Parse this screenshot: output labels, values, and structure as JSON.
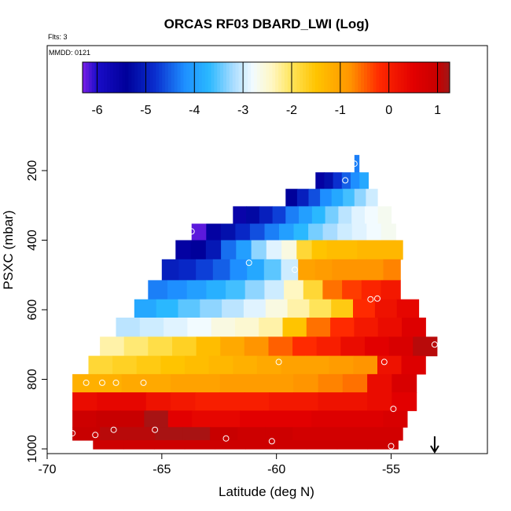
{
  "chart_data": {
    "type": "heatmap",
    "title": "ORCAS RF03 DBARD_LWI (Log)",
    "subtitle": "Flts: 3",
    "annotation": "MMDD: 0121",
    "xlabel": "Latitude (deg N)",
    "ylabel": "PSXC (mbar)",
    "xlim": [
      -70,
      -50.8
    ],
    "ylim": [
      1000,
      100
    ],
    "y_inverted": true,
    "xticks": [
      -70,
      -65,
      -60,
      -55
    ],
    "yticks": [
      200,
      400,
      600,
      800,
      1000
    ],
    "colorbar": {
      "range": [
        -6.3,
        1.25
      ],
      "ticks": [
        -6,
        -5,
        -4,
        -3,
        -2,
        -1,
        0,
        1
      ],
      "stops": [
        {
          "v": -6.3,
          "color": "#7b1fe6"
        },
        {
          "v": -6.0,
          "color": "#1a0cc8"
        },
        {
          "v": -5.4,
          "color": "#00009a"
        },
        {
          "v": -4.8,
          "color": "#0a2fcf"
        },
        {
          "v": -4.2,
          "color": "#1e8fff"
        },
        {
          "v": -3.7,
          "color": "#2ab8ff"
        },
        {
          "v": -3.2,
          "color": "#a8dcff"
        },
        {
          "v": -2.8,
          "color": "#f2fbff"
        },
        {
          "v": -2.4,
          "color": "#fff7c2"
        },
        {
          "v": -2.0,
          "color": "#ffe45a"
        },
        {
          "v": -1.5,
          "color": "#ffc400"
        },
        {
          "v": -0.8,
          "color": "#ff9500"
        },
        {
          "v": -0.2,
          "color": "#ff2a00"
        },
        {
          "v": 0.5,
          "color": "#e20000"
        },
        {
          "v": 1.0,
          "color": "#c80000"
        },
        {
          "v": 1.25,
          "color": "#a01818"
        }
      ]
    },
    "rows": [
      {
        "p": 180,
        "lat_min": -56.6,
        "lat_max": -56.4,
        "values": [
          -4.3
        ]
      },
      {
        "p": 230,
        "lat_min": -58.3,
        "lat_max": -56.0,
        "values": [
          -5.5,
          -5.2,
          -4.8,
          -4.5,
          -4.2,
          -3.9
        ]
      },
      {
        "p": 275,
        "lat_min": -59.6,
        "lat_max": -55.6,
        "values": [
          -5.4,
          -5.0,
          -4.6,
          -4.2,
          -3.9,
          -3.6,
          -3.3,
          -3.0
        ]
      },
      {
        "p": 330,
        "lat_min": -61.9,
        "lat_max": -55.0,
        "values": [
          -5.6,
          -5.3,
          -5.0,
          -4.7,
          -4.3,
          -4.0,
          -3.7,
          -3.4,
          -3.1,
          -2.9,
          -2.8,
          -2.7
        ]
      },
      {
        "p": 375,
        "lat_min": -63.7,
        "lat_max": -54.8,
        "values": [
          -6.2,
          -5.5,
          -5.2,
          -4.9,
          -4.6,
          -4.3,
          -4.0,
          -3.7,
          -3.4,
          -3.2,
          -3.0,
          -2.9,
          -2.8,
          -2.7
        ]
      },
      {
        "p": 425,
        "lat_min": -64.4,
        "lat_max": -54.5,
        "values": [
          -5.5,
          -5.4,
          -5.1,
          -4.4,
          -4.0,
          -3.3,
          -2.9,
          -2.6,
          -1.8,
          -1.5,
          -1.4,
          -1.4,
          -1.3,
          -1.3,
          -1.3
        ]
      },
      {
        "p": 485,
        "lat_min": -65.0,
        "lat_max": -54.6,
        "values": [
          -5.0,
          -4.9,
          -4.7,
          -4.5,
          -4.2,
          -3.9,
          -3.5,
          -3.0,
          -1.0,
          -0.9,
          -0.8,
          -0.8,
          -0.8,
          -0.7
        ]
      },
      {
        "p": 545,
        "lat_min": -65.6,
        "lat_max": -54.6,
        "values": [
          -4.3,
          -4.2,
          -4.0,
          -3.8,
          -3.6,
          -3.3,
          -3.0,
          -2.4,
          -1.8,
          -0.6,
          -0.3,
          -0.1,
          0.1
        ]
      },
      {
        "p": 595,
        "lat_min": -66.2,
        "lat_max": -53.8,
        "values": [
          -3.9,
          -3.7,
          -3.5,
          -3.3,
          -3.1,
          -2.9,
          -2.6,
          -2.3,
          -2.0,
          -1.6,
          -0.2,
          0.2,
          0.4
        ]
      },
      {
        "p": 650,
        "lat_min": -67.0,
        "lat_max": -53.5,
        "values": [
          -3.1,
          -3.0,
          -2.9,
          -2.8,
          -2.6,
          -2.5,
          -2.3,
          -1.5,
          -0.6,
          -0.2,
          0.1,
          0.3,
          0.6
        ]
      },
      {
        "p": 705,
        "lat_min": -67.7,
        "lat_max": -53.0,
        "values": [
          -2.3,
          -2.1,
          -1.9,
          -1.7,
          -1.4,
          -1.1,
          -0.8,
          -0.5,
          -0.2,
          0.0,
          0.3,
          0.5,
          0.7,
          1.1
        ]
      },
      {
        "p": 760,
        "lat_min": -68.2,
        "lat_max": -53.5,
        "values": [
          -1.8,
          -1.7,
          -1.6,
          -1.5,
          -1.4,
          -1.3,
          -1.2,
          -1.1,
          -1.0,
          -1.0,
          -0.9,
          -0.8,
          0.2,
          0.6
        ]
      },
      {
        "p": 810,
        "lat_min": -68.9,
        "lat_max": -53.9,
        "values": [
          -1.2,
          -1.2,
          -1.1,
          -1.1,
          -1.0,
          -1.0,
          -0.9,
          -0.9,
          -0.9,
          -0.8,
          -0.7,
          -0.6,
          0.3,
          0.7
        ]
      },
      {
        "p": 865,
        "lat_min": -68.9,
        "lat_max": -53.9,
        "values": [
          0.3,
          0.4,
          0.4,
          0.2,
          0.1,
          0.0,
          0.0,
          0.0,
          0.1,
          0.1,
          0.2,
          0.2,
          0.3,
          0.5
        ]
      },
      {
        "p": 915,
        "lat_min": -68.9,
        "lat_max": -54.3,
        "values": [
          0.9,
          1.0,
          1.0,
          1.2,
          0.5,
          0.4,
          0.4,
          0.5,
          0.5,
          0.5,
          0.6,
          0.6,
          0.6,
          0.7
        ]
      },
      {
        "p": 960,
        "lat_min": -68.9,
        "lat_max": -54.5,
        "values": [
          1.0,
          1.1,
          1.1,
          1.2,
          1.2,
          1.0,
          0.9,
          0.9,
          0.8,
          0.8,
          0.8,
          0.8
        ]
      },
      {
        "p": 990,
        "lat_min": -68.0,
        "lat_max": -54.7,
        "values": [
          0.9,
          0.9,
          0.9,
          0.9,
          0.9,
          0.9,
          0.9,
          0.9,
          0.9,
          0.9
        ]
      }
    ],
    "track_points": [
      {
        "lat": -56.6,
        "p": 180
      },
      {
        "lat": -57.0,
        "p": 228
      },
      {
        "lat": -63.7,
        "p": 375
      },
      {
        "lat": -61.2,
        "p": 465
      },
      {
        "lat": -59.2,
        "p": 485
      },
      {
        "lat": -55.9,
        "p": 570
      },
      {
        "lat": -55.6,
        "p": 568
      },
      {
        "lat": -53.1,
        "p": 700
      },
      {
        "lat": -68.7,
        "p": 770
      },
      {
        "lat": -59.9,
        "p": 750
      },
      {
        "lat": -55.3,
        "p": 750
      },
      {
        "lat": -68.3,
        "p": 810
      },
      {
        "lat": -67.6,
        "p": 810
      },
      {
        "lat": -67.0,
        "p": 810
      },
      {
        "lat": -65.8,
        "p": 810
      },
      {
        "lat": -54.9,
        "p": 885
      },
      {
        "lat": -68.9,
        "p": 955
      },
      {
        "lat": -67.9,
        "p": 960
      },
      {
        "lat": -67.1,
        "p": 945
      },
      {
        "lat": -65.3,
        "p": 945
      },
      {
        "lat": -62.2,
        "p": 970
      },
      {
        "lat": -60.2,
        "p": 978
      },
      {
        "lat": -55.0,
        "p": 992
      }
    ],
    "arrow": {
      "lat": -53.1
    }
  }
}
